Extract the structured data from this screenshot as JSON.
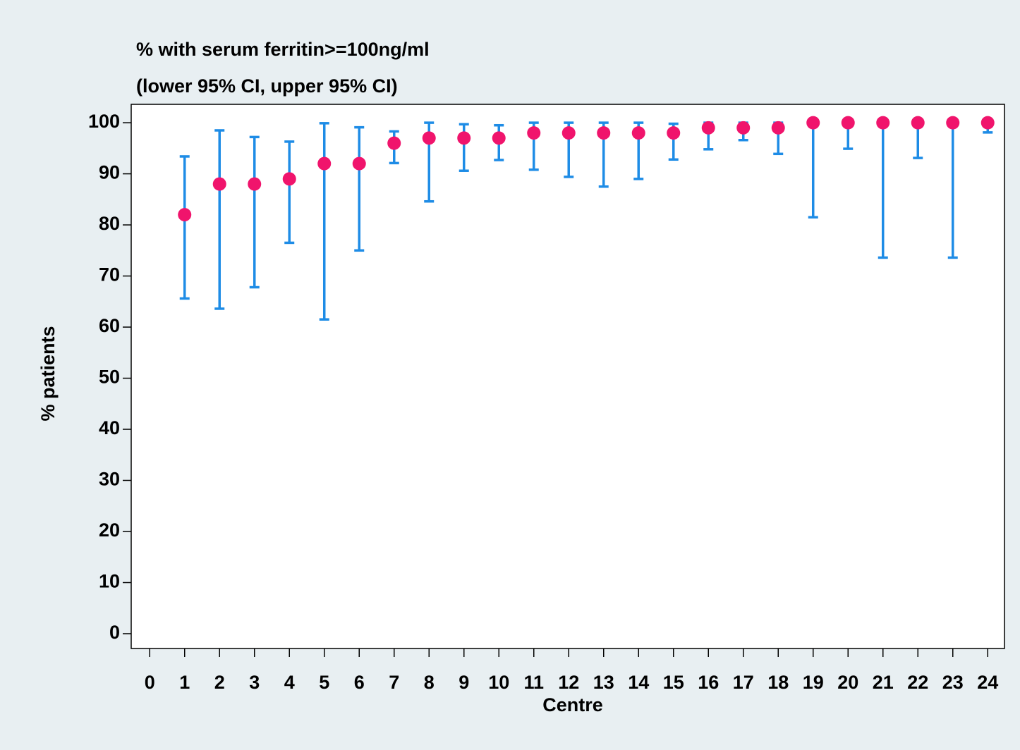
{
  "chart_data": {
    "type": "errorbar",
    "title": "% with serum ferritin>=100ng/ml",
    "subtitle": "(lower 95% CI, upper 95% CI)",
    "x_label": "Centre",
    "y_label": "% patients",
    "x": [
      1,
      2,
      3,
      4,
      5,
      6,
      7,
      8,
      9,
      10,
      11,
      12,
      13,
      14,
      15,
      16,
      17,
      18,
      19,
      20,
      21,
      22,
      23,
      24
    ],
    "series": [
      {
        "color": "#f0146c",
        "error_color": "#1e8ce6",
        "values": [
          82,
          88,
          88,
          89,
          92,
          92,
          96,
          97,
          97,
          97,
          98,
          98,
          98,
          98,
          98,
          99,
          99,
          99,
          100,
          100,
          100,
          100,
          100,
          100
        ],
        "lower": [
          65.6,
          63.6,
          67.8,
          76.5,
          61.5,
          75,
          92.1,
          84.6,
          90.6,
          92.7,
          90.8,
          89.4,
          87.5,
          89,
          92.8,
          94.8,
          96.6,
          93.9,
          81.5,
          94.9,
          73.6,
          93.1,
          73.6,
          98.1
        ],
        "upper": [
          93.4,
          98.5,
          97.2,
          96.3,
          99.9,
          99.1,
          98.3,
          100,
          99.7,
          99.5,
          100,
          100,
          100,
          100,
          99.8,
          100,
          100,
          100,
          100,
          100,
          100,
          100,
          100,
          100
        ]
      }
    ],
    "xlim": [
      -0.53,
      24.48
    ],
    "ylim": [
      -2.9,
      103.6
    ],
    "xticks": [
      0,
      1,
      2,
      3,
      4,
      5,
      6,
      7,
      8,
      9,
      10,
      11,
      12,
      13,
      14,
      15,
      16,
      17,
      18,
      19,
      20,
      21,
      22,
      23,
      24
    ],
    "yticks": [
      0,
      10,
      20,
      30,
      40,
      50,
      60,
      70,
      80,
      90,
      100
    ]
  }
}
